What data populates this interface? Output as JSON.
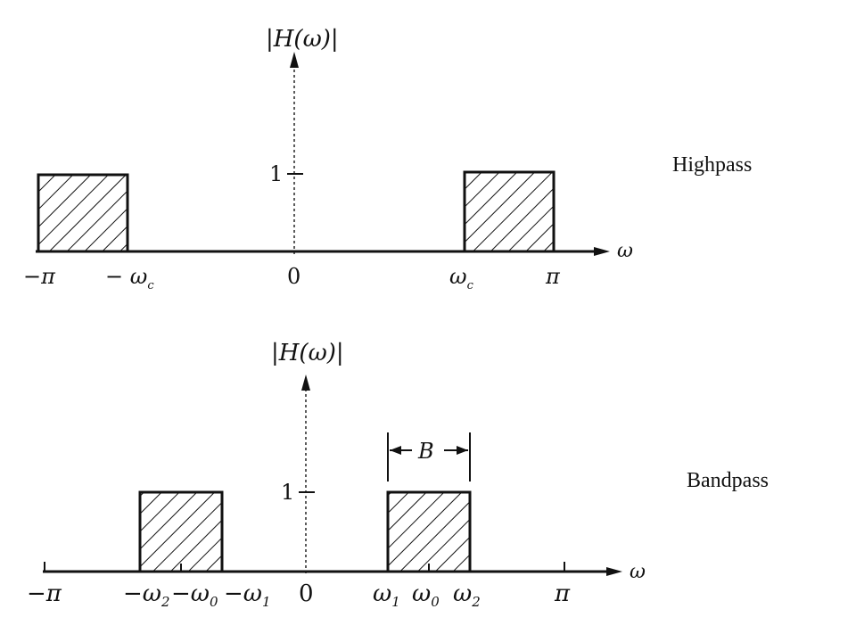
{
  "highpass": {
    "name": "Highpass",
    "y_label": "|H(ω)|",
    "x_label": "ω",
    "one_label": "1",
    "x_ticks": [
      "−π",
      "− ω",
      "0",
      "ω",
      "π"
    ],
    "cutoff_subscript": "c",
    "passbands": [
      {
        "from": "−π",
        "to": "−ωc",
        "gain": 1
      },
      {
        "from": "ωc",
        "to": "π",
        "gain": 1
      }
    ]
  },
  "bandpass": {
    "name": "Bandpass",
    "y_label": "|H(ω)|",
    "x_label": "ω",
    "one_label": "1",
    "bandwidth_label": "B",
    "x_ticks": [
      "−π",
      "−ω",
      "−ω",
      "−ω",
      "0",
      "ω",
      "ω",
      "ω",
      "π"
    ],
    "x_tick_subscripts": [
      "",
      "2",
      "0",
      "1",
      "",
      "1",
      "0",
      "2",
      ""
    ],
    "passbands": [
      {
        "from": "−ω2",
        "to": "−ω1",
        "gain": 1
      },
      {
        "from": "ω1",
        "to": "ω2",
        "gain": 1
      }
    ]
  }
}
